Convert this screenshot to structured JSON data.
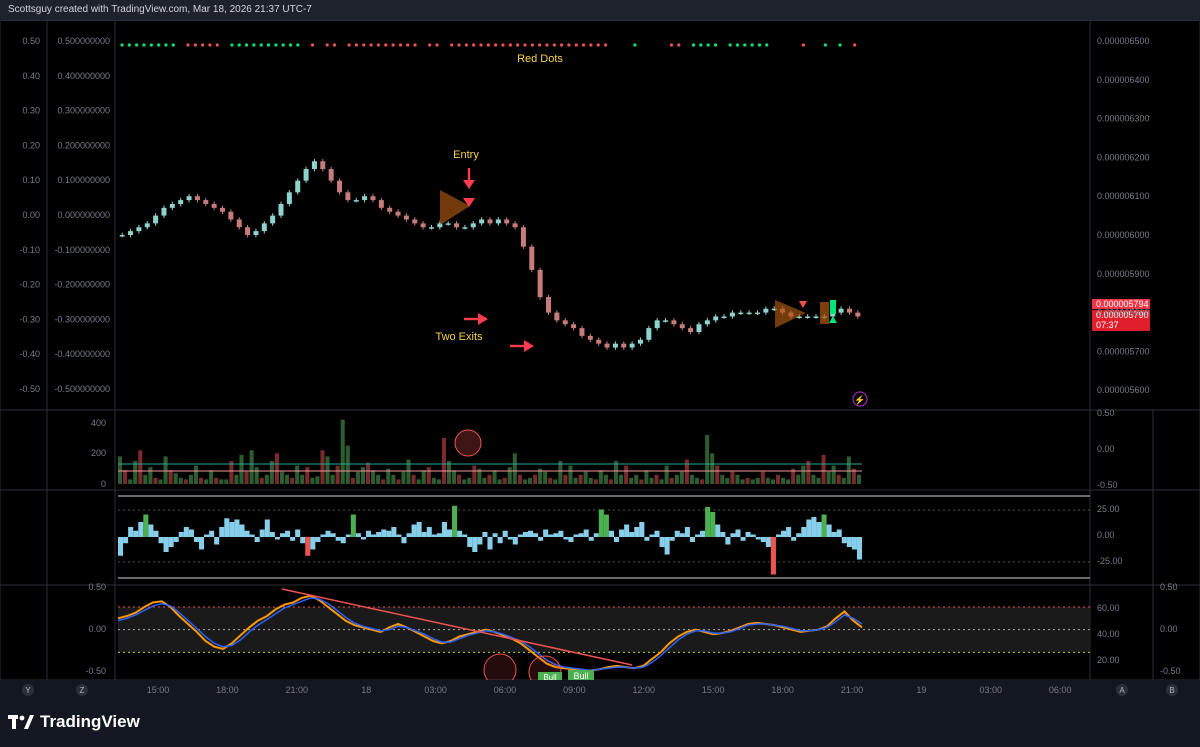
{
  "header": {
    "caption": "Scottsguy created with TradingView.com, Mar 18, 2026 21:37 UTC-7"
  },
  "footer": {
    "brand": "TradingView"
  },
  "colors": {
    "bull": "#26a69a",
    "bear": "#ef5350",
    "annotation": "#f7d44a",
    "arrow": "#ff3b4e",
    "price_label": "#f23645",
    "histogram": "#87ceeb",
    "green": "#4caf50",
    "volume_up": "#2e5c31",
    "volume_down": "#7a2a2a",
    "stoch_k": "#ff9800",
    "stoch_d": "#2962ff"
  },
  "chart_data": [
    {
      "type": "candlestick",
      "pane": "main",
      "x_tick_labels": [
        "15:00",
        "18:00",
        "21:00",
        "18",
        "03:00",
        "06:00",
        "09:00",
        "12:00",
        "15:00",
        "18:00",
        "21:00",
        "19",
        "03:00",
        "06:00"
      ],
      "left_ticks": [
        "0.50",
        "0.40",
        "0.30",
        "0.20",
        "0.10",
        "0.00",
        "-0.10",
        "-0.20",
        "-0.30",
        "-0.40",
        "-0.50"
      ],
      "inner_ticks": [
        "0.500000000",
        "0.400000000",
        "0.300000000",
        "0.200000000",
        "0.100000000",
        "0.000000000",
        "-0.100000000",
        "-0.200000000",
        "-0.300000000",
        "-0.400000000",
        "-0.500000000"
      ],
      "right_ticks": [
        "0.000006500",
        "0.000006400",
        "0.000006300",
        "0.000006200",
        "0.000006100",
        "0.000006000",
        "0.000005900",
        "0.000005800",
        "0.000005700",
        "0.000005600"
      ],
      "right_range": [
        5.56e-06,
        6.55e-06
      ],
      "price_labels": [
        {
          "value": "0.000005794"
        },
        {
          "value": "0.000005790"
        },
        {
          "value": "07:37"
        }
      ],
      "close_series": [
        6e-06,
        6.01e-06,
        6.02e-06,
        6.03e-06,
        6.05e-06,
        6.07e-06,
        6.08e-06,
        6.09e-06,
        6.1e-06,
        6.09e-06,
        6.08e-06,
        6.07e-06,
        6.06e-06,
        6.04e-06,
        6.02e-06,
        6e-06,
        6.01e-06,
        6.03e-06,
        6.05e-06,
        6.08e-06,
        6.11e-06,
        6.14e-06,
        6.17e-06,
        6.19e-06,
        6.17e-06,
        6.14e-06,
        6.11e-06,
        6.09e-06,
        6.09e-06,
        6.1e-06,
        6.09e-06,
        6.07e-06,
        6.06e-06,
        6.05e-06,
        6.04e-06,
        6.03e-06,
        6.02e-06,
        6.02e-06,
        6.03e-06,
        6.03e-06,
        6.02e-06,
        6.02e-06,
        6.03e-06,
        6.04e-06,
        6.03e-06,
        6.04e-06,
        6.03e-06,
        6.02e-06,
        5.97e-06,
        5.91e-06,
        5.84e-06,
        5.8e-06,
        5.78e-06,
        5.77e-06,
        5.76e-06,
        5.74e-06,
        5.73e-06,
        5.72e-06,
        5.71e-06,
        5.72e-06,
        5.71e-06,
        5.72e-06,
        5.73e-06,
        5.76e-06,
        5.78e-06,
        5.78e-06,
        5.77e-06,
        5.76e-06,
        5.75e-06,
        5.77e-06,
        5.78e-06,
        5.79e-06,
        5.79e-06,
        5.8e-06,
        5.8e-06,
        5.8e-06,
        5.8e-06,
        5.81e-06,
        5.81e-06,
        5.8e-06,
        5.79e-06,
        5.79e-06,
        5.79e-06,
        5.79e-06,
        5.79e-06,
        5.8e-06,
        5.81e-06,
        5.8e-06,
        5.79e-06
      ],
      "annotations": [
        {
          "text": "Red Dots"
        },
        {
          "text": "Entry"
        },
        {
          "text": "Two Exits"
        }
      ],
      "signal_dots": "gggggggg-rrrrr-gggggggggg-r-rr-rrrrrrrrrr-rr-rrrrrrrrrrrrrrrrrrrrrr---g----rr-gggg-gggggg----r--g-g-r"
    },
    {
      "type": "bar",
      "pane": "volume",
      "right_ticks": [
        "0.50",
        "0.00",
        "-0.50"
      ],
      "left_ticks": [
        "400",
        "200",
        "0"
      ],
      "values": [
        180,
        90,
        30,
        150,
        220,
        60,
        110,
        40,
        30,
        180,
        90,
        70,
        40,
        30,
        60,
        120,
        40,
        30,
        90,
        40,
        30,
        30,
        150,
        60,
        190,
        80,
        220,
        110,
        40,
        60,
        150,
        200,
        80,
        60,
        40,
        120,
        60,
        110,
        40,
        50,
        220,
        180,
        60,
        120,
        420,
        250,
        40,
        80,
        110,
        140,
        90,
        60,
        30,
        100,
        60,
        30,
        80,
        160,
        60,
        30,
        90,
        110,
        40,
        30,
        300,
        150,
        90,
        60,
        30,
        40,
        120,
        100,
        40,
        60,
        90,
        30,
        40,
        110,
        200,
        60,
        30,
        40,
        60,
        100,
        80,
        40,
        30,
        150,
        60,
        120,
        40,
        60,
        80,
        40,
        30,
        90,
        60,
        30,
        150,
        60,
        120,
        40,
        60,
        30,
        90,
        40,
        60,
        30,
        120,
        40,
        60,
        80,
        160,
        60,
        40,
        30,
        320,
        200,
        120,
        60,
        40,
        80,
        60,
        30,
        40,
        30,
        40,
        80,
        40,
        30,
        60,
        40,
        30,
        100,
        60,
        120,
        150,
        60,
        40,
        190,
        80,
        120,
        60,
        40,
        180,
        100,
        60
      ],
      "ylim": [
        0,
        450
      ]
    },
    {
      "type": "bar",
      "pane": "histogram",
      "right_ticks": [
        "25.00",
        "0.00",
        "-25.00"
      ],
      "ylim": [
        -30,
        30
      ],
      "values": [
        -15,
        -5,
        8,
        5,
        12,
        18,
        10,
        5,
        -5,
        -12,
        -8,
        -4,
        4,
        8,
        6,
        -4,
        -10,
        2,
        5,
        -6,
        8,
        15,
        12,
        14,
        10,
        5,
        2,
        -4,
        6,
        14,
        4,
        -2,
        3,
        5,
        -3,
        6,
        -5,
        -15,
        -10,
        -4,
        2,
        5,
        3,
        -3,
        -5,
        2,
        18,
        3,
        -2,
        5,
        2,
        4,
        6,
        5,
        8,
        2,
        -5,
        3,
        10,
        12,
        4,
        8,
        2,
        3,
        12,
        6,
        25,
        5,
        2,
        -8,
        -12,
        -6,
        4,
        -10,
        3,
        -5,
        5,
        -2,
        -6,
        2,
        4,
        5,
        3,
        -3,
        6,
        2,
        3,
        5,
        -2,
        -4,
        2,
        3,
        6,
        -3,
        3,
        22,
        18,
        5,
        -4,
        6,
        10,
        4,
        8,
        12,
        -3,
        2,
        5,
        -8,
        -14,
        -3,
        5,
        3,
        8,
        -4,
        2,
        5,
        24,
        20,
        10,
        4,
        -6,
        3,
        6,
        -3,
        4,
        2,
        -2,
        -4,
        -8,
        -30,
        2,
        5,
        8,
        -3,
        3,
        8,
        14,
        16,
        12,
        18,
        10,
        4,
        6,
        -5,
        -8,
        -10,
        -18
      ]
    },
    {
      "type": "line",
      "pane": "stochastic",
      "left_ticks": [
        "0.50",
        "0.00",
        "-0.50"
      ],
      "right_ticks_outer": [
        "0.50",
        "0.00",
        "-0.50"
      ],
      "right_ticks_inner": [
        "60.00",
        "40.00",
        "20.00"
      ],
      "ylim": [
        10,
        85
      ],
      "series": [
        {
          "values": [
            60,
            62,
            65,
            70,
            74,
            75,
            70,
            62,
            55,
            48,
            40,
            35,
            33,
            38,
            45,
            52,
            58,
            62,
            68,
            72,
            74,
            78,
            80,
            76,
            70,
            64,
            58,
            54,
            52,
            50,
            48,
            52,
            55,
            52,
            48,
            44,
            40,
            38,
            40,
            44,
            46,
            48,
            50,
            48,
            45,
            42,
            38,
            32,
            26,
            20,
            17,
            16,
            15,
            14,
            14,
            15,
            17,
            18,
            17,
            16,
            18,
            24,
            30,
            38,
            44,
            48,
            50,
            48,
            46,
            47,
            49,
            52,
            55,
            56,
            55,
            54,
            52,
            50,
            48,
            49,
            50,
            53,
            60,
            66,
            58,
            52
          ]
        },
        {
          "values": [
            58,
            60,
            63,
            67,
            71,
            73,
            71,
            65,
            58,
            51,
            44,
            38,
            35,
            36,
            41,
            48,
            54,
            59,
            64,
            69,
            72,
            75,
            78,
            77,
            73,
            67,
            61,
            56,
            53,
            51,
            49,
            50,
            53,
            52,
            49,
            46,
            42,
            39,
            39,
            42,
            45,
            47,
            49,
            48,
            46,
            43,
            40,
            35,
            29,
            23,
            19,
            17,
            16,
            15,
            14,
            15,
            16,
            17,
            17,
            16,
            17,
            21,
            27,
            34,
            41,
            46,
            49,
            49,
            47,
            47,
            48,
            51,
            54,
            55,
            55,
            54,
            53,
            51,
            49,
            49,
            50,
            52,
            57,
            63,
            60,
            55
          ]
        }
      ],
      "badges": [
        {
          "text": "Bull"
        },
        {
          "text": "Bull"
        }
      ]
    }
  ]
}
